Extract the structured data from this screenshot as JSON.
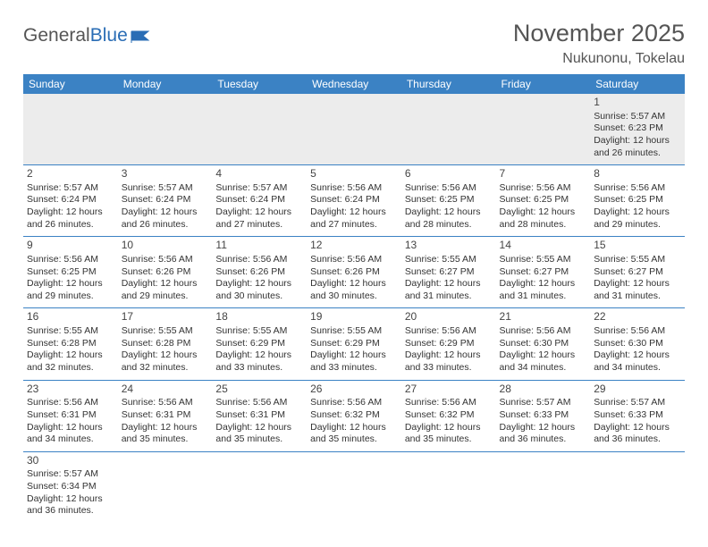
{
  "logo": {
    "text1": "General",
    "text2": "Blue"
  },
  "title": "November 2025",
  "location": "Nukunonu, Tokelau",
  "colors": {
    "header_bg": "#3b82c4",
    "header_text": "#ffffff",
    "row_alt_bg": "#ececec",
    "border": "#3b82c4",
    "text": "#333333",
    "title_text": "#555555"
  },
  "fonts": {
    "family": "Arial",
    "title_size": 27,
    "cell_size": 10.5,
    "header_size": 12
  },
  "day_headers": [
    "Sunday",
    "Monday",
    "Tuesday",
    "Wednesday",
    "Thursday",
    "Friday",
    "Saturday"
  ],
  "weeks": [
    [
      null,
      null,
      null,
      null,
      null,
      null,
      {
        "n": "1",
        "sr": "Sunrise: 5:57 AM",
        "ss": "Sunset: 6:23 PM",
        "dl1": "Daylight: 12 hours",
        "dl2": "and 26 minutes."
      }
    ],
    [
      {
        "n": "2",
        "sr": "Sunrise: 5:57 AM",
        "ss": "Sunset: 6:24 PM",
        "dl1": "Daylight: 12 hours",
        "dl2": "and 26 minutes."
      },
      {
        "n": "3",
        "sr": "Sunrise: 5:57 AM",
        "ss": "Sunset: 6:24 PM",
        "dl1": "Daylight: 12 hours",
        "dl2": "and 26 minutes."
      },
      {
        "n": "4",
        "sr": "Sunrise: 5:57 AM",
        "ss": "Sunset: 6:24 PM",
        "dl1": "Daylight: 12 hours",
        "dl2": "and 27 minutes."
      },
      {
        "n": "5",
        "sr": "Sunrise: 5:56 AM",
        "ss": "Sunset: 6:24 PM",
        "dl1": "Daylight: 12 hours",
        "dl2": "and 27 minutes."
      },
      {
        "n": "6",
        "sr": "Sunrise: 5:56 AM",
        "ss": "Sunset: 6:25 PM",
        "dl1": "Daylight: 12 hours",
        "dl2": "and 28 minutes."
      },
      {
        "n": "7",
        "sr": "Sunrise: 5:56 AM",
        "ss": "Sunset: 6:25 PM",
        "dl1": "Daylight: 12 hours",
        "dl2": "and 28 minutes."
      },
      {
        "n": "8",
        "sr": "Sunrise: 5:56 AM",
        "ss": "Sunset: 6:25 PM",
        "dl1": "Daylight: 12 hours",
        "dl2": "and 29 minutes."
      }
    ],
    [
      {
        "n": "9",
        "sr": "Sunrise: 5:56 AM",
        "ss": "Sunset: 6:25 PM",
        "dl1": "Daylight: 12 hours",
        "dl2": "and 29 minutes."
      },
      {
        "n": "10",
        "sr": "Sunrise: 5:56 AM",
        "ss": "Sunset: 6:26 PM",
        "dl1": "Daylight: 12 hours",
        "dl2": "and 29 minutes."
      },
      {
        "n": "11",
        "sr": "Sunrise: 5:56 AM",
        "ss": "Sunset: 6:26 PM",
        "dl1": "Daylight: 12 hours",
        "dl2": "and 30 minutes."
      },
      {
        "n": "12",
        "sr": "Sunrise: 5:56 AM",
        "ss": "Sunset: 6:26 PM",
        "dl1": "Daylight: 12 hours",
        "dl2": "and 30 minutes."
      },
      {
        "n": "13",
        "sr": "Sunrise: 5:55 AM",
        "ss": "Sunset: 6:27 PM",
        "dl1": "Daylight: 12 hours",
        "dl2": "and 31 minutes."
      },
      {
        "n": "14",
        "sr": "Sunrise: 5:55 AM",
        "ss": "Sunset: 6:27 PM",
        "dl1": "Daylight: 12 hours",
        "dl2": "and 31 minutes."
      },
      {
        "n": "15",
        "sr": "Sunrise: 5:55 AM",
        "ss": "Sunset: 6:27 PM",
        "dl1": "Daylight: 12 hours",
        "dl2": "and 31 minutes."
      }
    ],
    [
      {
        "n": "16",
        "sr": "Sunrise: 5:55 AM",
        "ss": "Sunset: 6:28 PM",
        "dl1": "Daylight: 12 hours",
        "dl2": "and 32 minutes."
      },
      {
        "n": "17",
        "sr": "Sunrise: 5:55 AM",
        "ss": "Sunset: 6:28 PM",
        "dl1": "Daylight: 12 hours",
        "dl2": "and 32 minutes."
      },
      {
        "n": "18",
        "sr": "Sunrise: 5:55 AM",
        "ss": "Sunset: 6:29 PM",
        "dl1": "Daylight: 12 hours",
        "dl2": "and 33 minutes."
      },
      {
        "n": "19",
        "sr": "Sunrise: 5:55 AM",
        "ss": "Sunset: 6:29 PM",
        "dl1": "Daylight: 12 hours",
        "dl2": "and 33 minutes."
      },
      {
        "n": "20",
        "sr": "Sunrise: 5:56 AM",
        "ss": "Sunset: 6:29 PM",
        "dl1": "Daylight: 12 hours",
        "dl2": "and 33 minutes."
      },
      {
        "n": "21",
        "sr": "Sunrise: 5:56 AM",
        "ss": "Sunset: 6:30 PM",
        "dl1": "Daylight: 12 hours",
        "dl2": "and 34 minutes."
      },
      {
        "n": "22",
        "sr": "Sunrise: 5:56 AM",
        "ss": "Sunset: 6:30 PM",
        "dl1": "Daylight: 12 hours",
        "dl2": "and 34 minutes."
      }
    ],
    [
      {
        "n": "23",
        "sr": "Sunrise: 5:56 AM",
        "ss": "Sunset: 6:31 PM",
        "dl1": "Daylight: 12 hours",
        "dl2": "and 34 minutes."
      },
      {
        "n": "24",
        "sr": "Sunrise: 5:56 AM",
        "ss": "Sunset: 6:31 PM",
        "dl1": "Daylight: 12 hours",
        "dl2": "and 35 minutes."
      },
      {
        "n": "25",
        "sr": "Sunrise: 5:56 AM",
        "ss": "Sunset: 6:31 PM",
        "dl1": "Daylight: 12 hours",
        "dl2": "and 35 minutes."
      },
      {
        "n": "26",
        "sr": "Sunrise: 5:56 AM",
        "ss": "Sunset: 6:32 PM",
        "dl1": "Daylight: 12 hours",
        "dl2": "and 35 minutes."
      },
      {
        "n": "27",
        "sr": "Sunrise: 5:56 AM",
        "ss": "Sunset: 6:32 PM",
        "dl1": "Daylight: 12 hours",
        "dl2": "and 35 minutes."
      },
      {
        "n": "28",
        "sr": "Sunrise: 5:57 AM",
        "ss": "Sunset: 6:33 PM",
        "dl1": "Daylight: 12 hours",
        "dl2": "and 36 minutes."
      },
      {
        "n": "29",
        "sr": "Sunrise: 5:57 AM",
        "ss": "Sunset: 6:33 PM",
        "dl1": "Daylight: 12 hours",
        "dl2": "and 36 minutes."
      }
    ],
    [
      {
        "n": "30",
        "sr": "Sunrise: 5:57 AM",
        "ss": "Sunset: 6:34 PM",
        "dl1": "Daylight: 12 hours",
        "dl2": "and 36 minutes."
      },
      null,
      null,
      null,
      null,
      null,
      null
    ]
  ]
}
